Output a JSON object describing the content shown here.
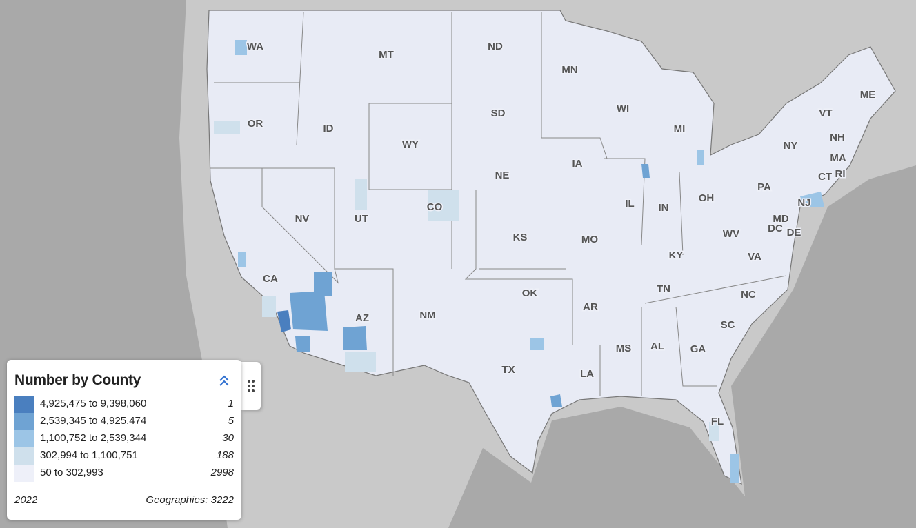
{
  "legend": {
    "title": "Number by County",
    "entries": [
      {
        "label": "4,925,475 to 9,398,060",
        "count": 1,
        "color": "#4a7fbf"
      },
      {
        "label": "2,539,345 to 4,925,474",
        "count": 5,
        "color": "#6fa3d3"
      },
      {
        "label": "1,100,752 to 2,539,344",
        "count": 30,
        "color": "#9cc5e6"
      },
      {
        "label": "302,994 to 1,100,751",
        "count": 188,
        "color": "#cfe0ec"
      },
      {
        "label": "50 to 302,993",
        "count": 2998,
        "color": "#eef0f9"
      }
    ],
    "year": "2022",
    "geographies": "Geographies: 3222"
  },
  "map": {
    "state_labels": [
      "WA",
      "MT",
      "ND",
      "MN",
      "OR",
      "ID",
      "WY",
      "SD",
      "WI",
      "MI",
      "NY",
      "VT",
      "NH",
      "ME",
      "MA",
      "CT",
      "RI",
      "NE",
      "IA",
      "NV",
      "UT",
      "CO",
      "IL",
      "IN",
      "OH",
      "PA",
      "NJ",
      "CA",
      "KS",
      "MO",
      "KY",
      "WV",
      "MD",
      "DC",
      "DE",
      "VA",
      "AZ",
      "NM",
      "OK",
      "AR",
      "TN",
      "NC",
      "SC",
      "TX",
      "LA",
      "MS",
      "AL",
      "GA",
      "FL"
    ]
  }
}
